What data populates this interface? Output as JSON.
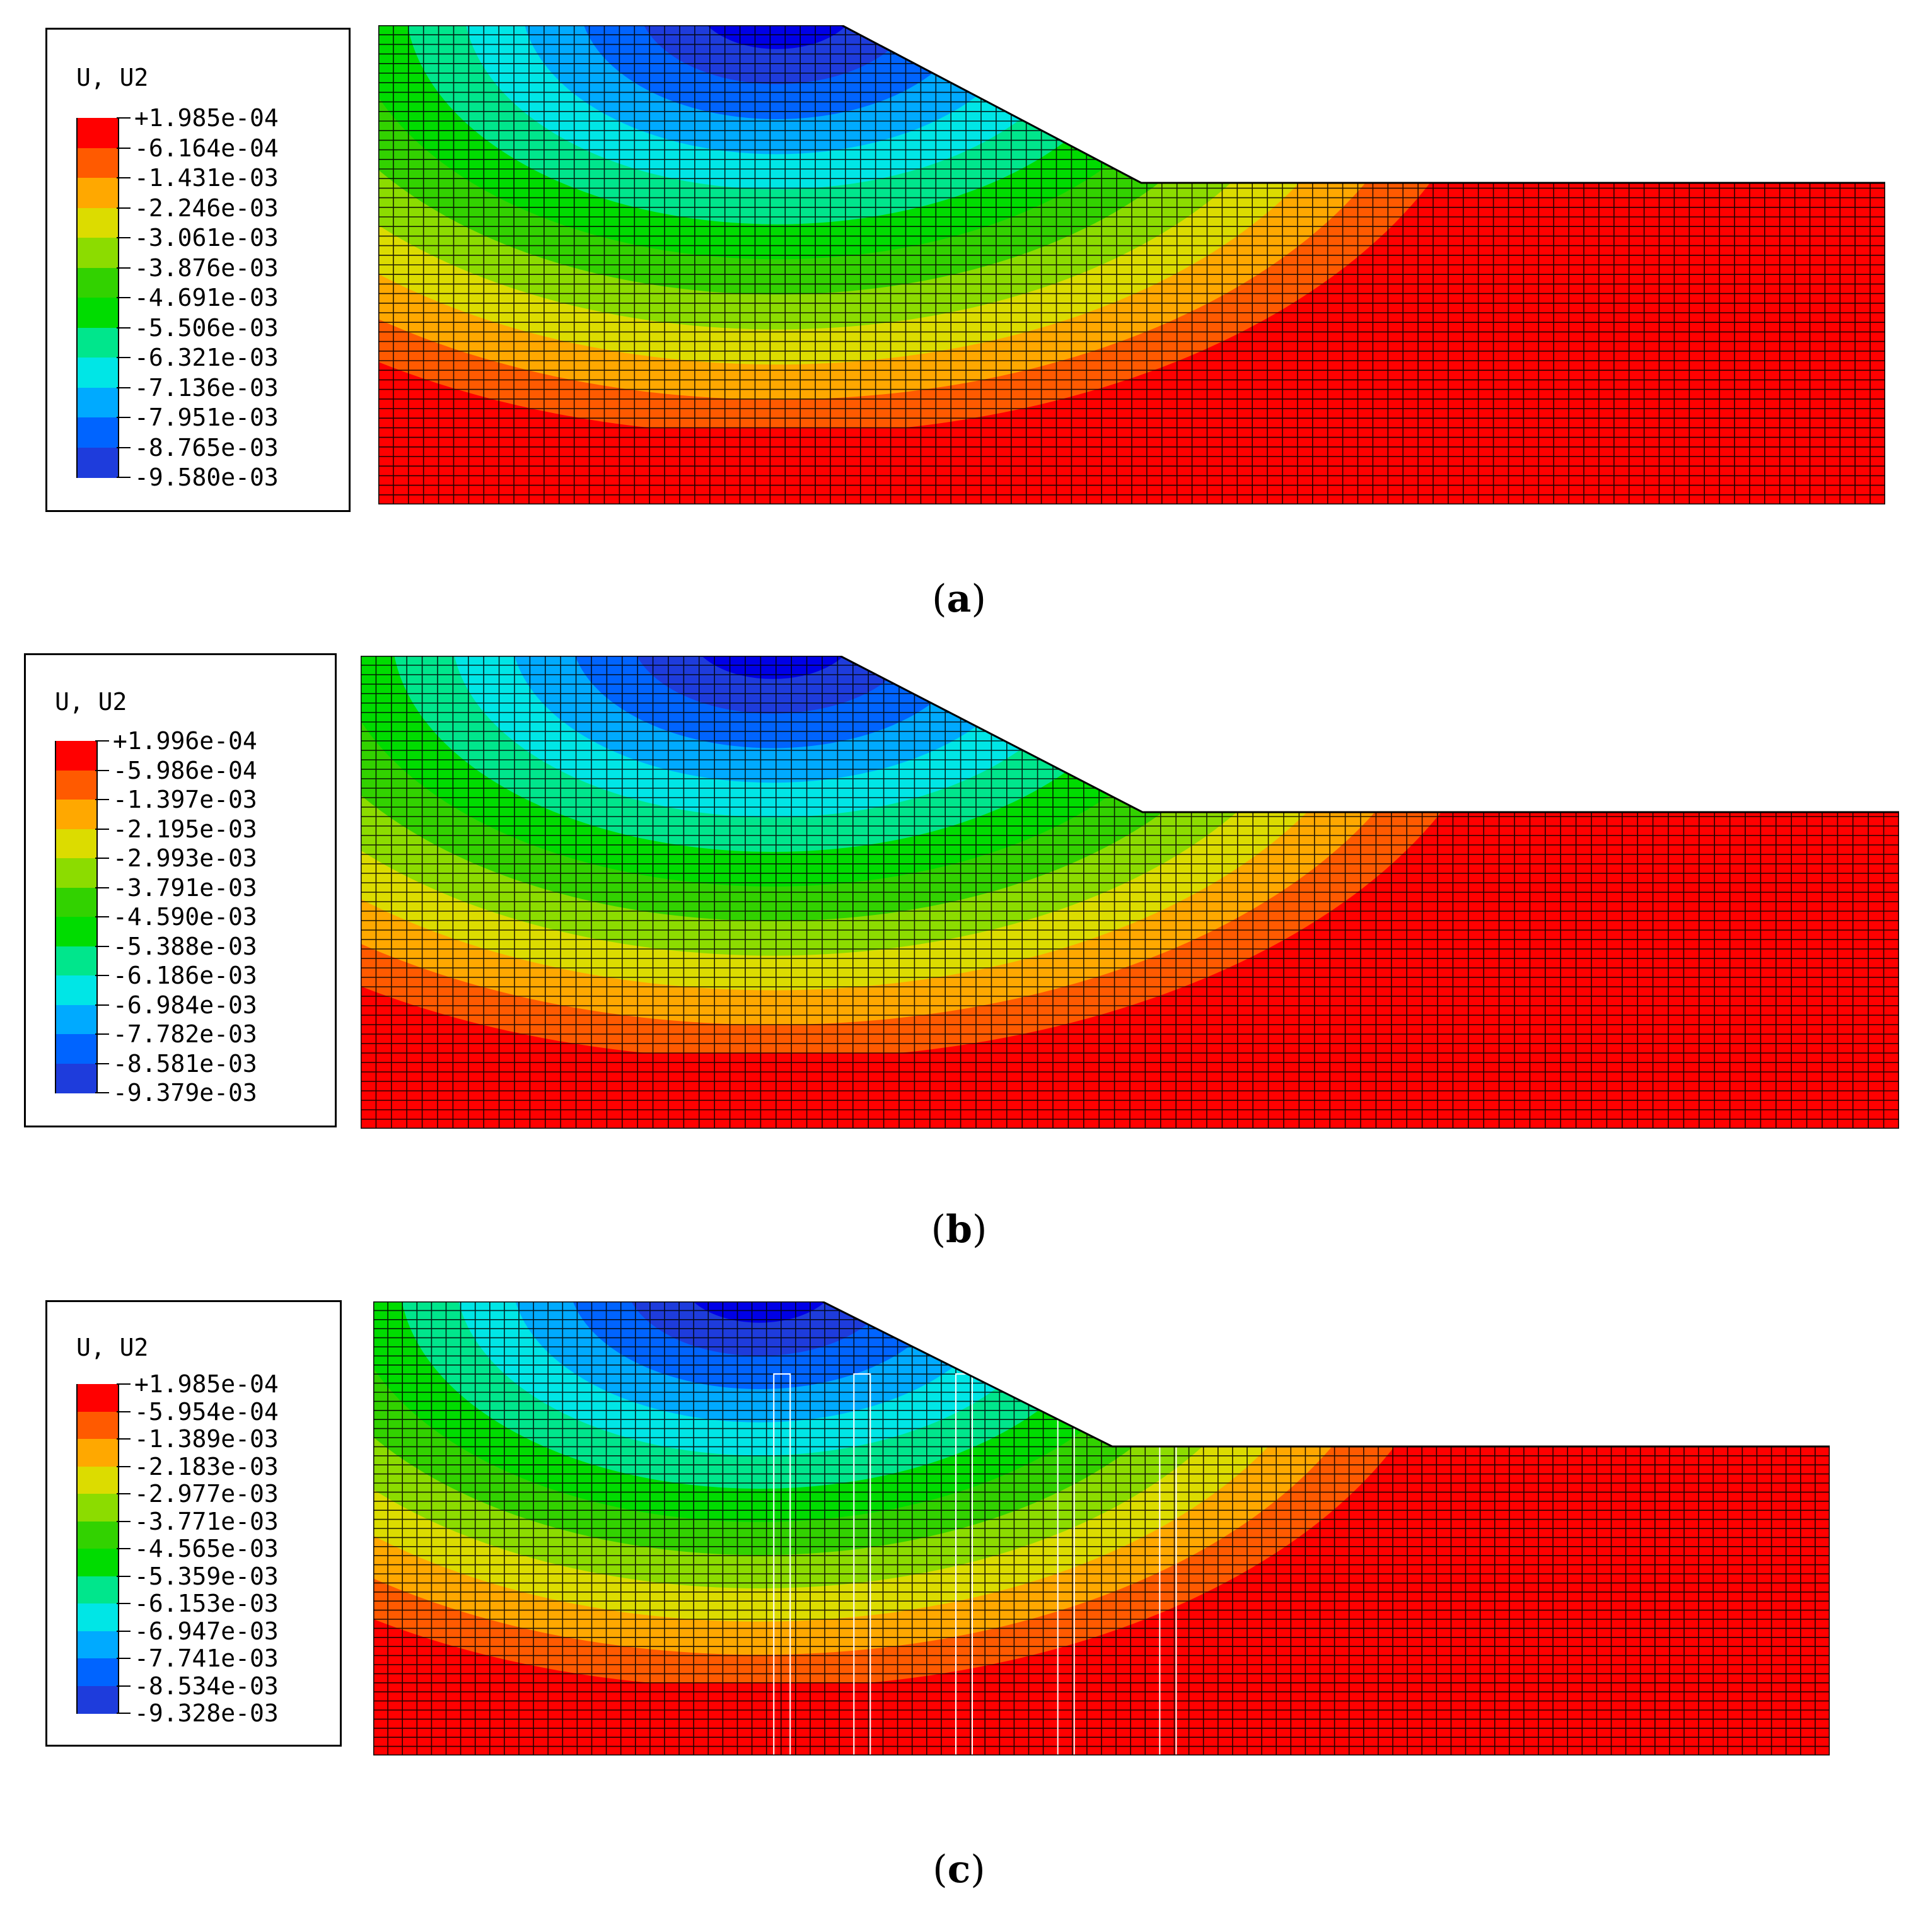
{
  "panels": [
    {
      "caption_open": "(",
      "caption_letter": "a",
      "caption_close": ")",
      "legend": {
        "title": "U, U2",
        "values": [
          "+1.985e-04",
          "-6.164e-04",
          "-1.431e-03",
          "-2.246e-03",
          "-3.061e-03",
          "-3.876e-03",
          "-4.691e-03",
          "-5.506e-03",
          "-6.321e-03",
          "-7.136e-03",
          "-7.951e-03",
          "-8.765e-03",
          "-9.580e-03"
        ]
      },
      "has_piles": false
    },
    {
      "caption_open": "(",
      "caption_letter": "b",
      "caption_close": ")",
      "legend": {
        "title": "U, U2",
        "values": [
          "+1.996e-04",
          "-5.986e-04",
          "-1.397e-03",
          "-2.195e-03",
          "-2.993e-03",
          "-3.791e-03",
          "-4.590e-03",
          "-5.388e-03",
          "-6.186e-03",
          "-6.984e-03",
          "-7.782e-03",
          "-8.581e-03",
          "-9.379e-03"
        ]
      },
      "has_piles": false
    },
    {
      "caption_open": "(",
      "caption_letter": "c",
      "caption_close": ")",
      "legend": {
        "title": "U, U2",
        "values": [
          "+1.985e-04",
          "-5.954e-04",
          "-1.389e-03",
          "-2.183e-03",
          "-2.977e-03",
          "-3.771e-03",
          "-4.565e-03",
          "-5.359e-03",
          "-6.153e-03",
          "-6.947e-03",
          "-7.741e-03",
          "-8.534e-03",
          "-9.328e-03"
        ]
      },
      "has_piles": true
    }
  ],
  "colors": {
    "contour_bands": [
      "#ff0000",
      "#ff5a00",
      "#ffa800",
      "#dcdc00",
      "#8cdc00",
      "#32d200",
      "#00dc00",
      "#00e68c",
      "#00e6e6",
      "#00aaff",
      "#0064ff",
      "#1e3cdc",
      "#0000e6"
    ],
    "mesh_line": "#000000"
  }
}
